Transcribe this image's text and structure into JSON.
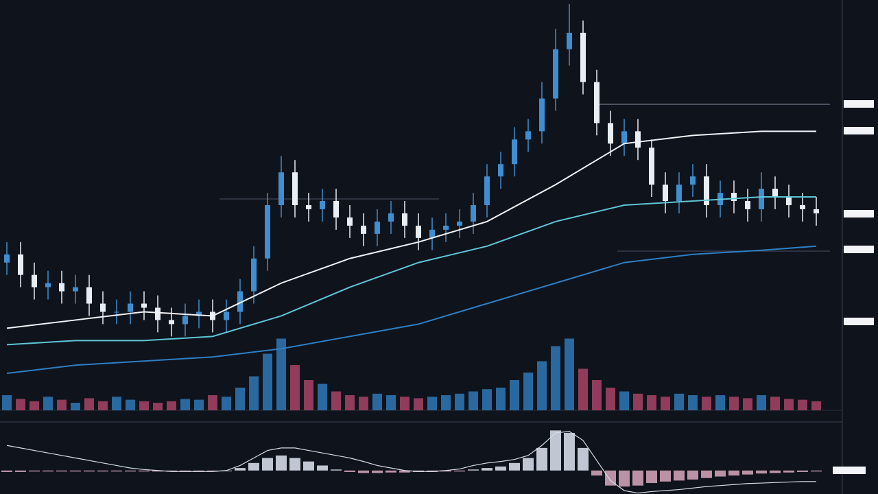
{
  "chart_data": [
    {
      "type": "candlestick",
      "ylim": [
        0,
        100
      ],
      "up_color": "#3f8fd0",
      "down_color": "#e8eef5",
      "open": [
        36,
        38,
        33,
        30,
        31,
        29,
        30,
        26,
        24,
        24,
        26,
        25,
        22,
        21,
        23,
        24,
        22,
        24,
        29,
        37,
        50,
        58,
        50,
        49,
        51,
        47,
        45,
        43,
        46,
        48,
        45,
        42,
        44,
        45,
        46,
        50,
        57,
        60,
        66,
        68,
        76,
        88,
        92,
        80,
        70,
        65,
        68,
        64,
        55,
        51,
        55,
        57,
        50,
        53,
        51,
        49,
        54,
        52,
        50,
        49
      ],
      "high": [
        41,
        41,
        36,
        34,
        34,
        33,
        33,
        29,
        27,
        29,
        29,
        28,
        25,
        26,
        27,
        27,
        27,
        32,
        40,
        53,
        62,
        61,
        53,
        54,
        54,
        50,
        48,
        49,
        51,
        51,
        48,
        47,
        48,
        49,
        53,
        60,
        63,
        69,
        71,
        80,
        93,
        99,
        95,
        83,
        73,
        71,
        71,
        66,
        58,
        58,
        60,
        60,
        56,
        56,
        54,
        58,
        57,
        55,
        53,
        52
      ],
      "low": [
        33,
        30,
        27,
        27,
        26,
        26,
        23,
        21,
        21,
        21,
        22,
        19,
        18,
        18,
        20,
        19,
        19,
        21,
        26,
        34,
        47,
        47,
        46,
        46,
        44,
        42,
        40,
        40,
        43,
        42,
        39,
        39,
        41,
        42,
        43,
        47,
        54,
        57,
        63,
        65,
        73,
        84,
        77,
        67,
        62,
        62,
        61,
        52,
        48,
        48,
        52,
        47,
        47,
        48,
        46,
        46,
        49,
        47,
        46,
        45
      ],
      "close": [
        38,
        33,
        30,
        31,
        29,
        30,
        26,
        24,
        24,
        26,
        25,
        22,
        21,
        23,
        24,
        22,
        24,
        29,
        37,
        50,
        58,
        50,
        49,
        51,
        47,
        45,
        43,
        46,
        48,
        45,
        42,
        44,
        45,
        46,
        50,
        57,
        60,
        66,
        68,
        76,
        88,
        92,
        80,
        70,
        65,
        68,
        64,
        55,
        51,
        55,
        57,
        50,
        53,
        51,
        49,
        54,
        52,
        50,
        49,
        48
      ],
      "overlays": {
        "x": [
          0,
          5,
          10,
          15,
          20,
          25,
          30,
          35,
          40,
          45,
          50,
          55,
          59
        ],
        "series": [
          {
            "color": "#f2f4f8",
            "values": [
              20,
              22,
              24,
              23,
              31,
              37,
              41,
              46,
              55,
              65,
              67,
              68,
              68
            ]
          },
          {
            "color": "#5fc6d8",
            "values": [
              16,
              17,
              17,
              18,
              23,
              30,
              36,
              40,
              46,
              50,
              51,
              52,
              52
            ]
          },
          {
            "color": "#2e7fc4",
            "values": [
              9,
              11,
              12,
              13,
              15,
              18,
              21,
              26,
              31,
              36,
              38,
              39,
              40
            ]
          }
        ]
      }
    },
    {
      "type": "bar",
      "ylim": [
        0,
        100
      ],
      "up_color": "#2f7fc0",
      "down_color": "#b0476a",
      "values": [
        20,
        15,
        12,
        18,
        14,
        10,
        16,
        12,
        18,
        14,
        12,
        10,
        12,
        15,
        14,
        20,
        18,
        30,
        45,
        75,
        95,
        60,
        40,
        35,
        25,
        20,
        18,
        22,
        20,
        18,
        16,
        18,
        20,
        22,
        25,
        28,
        30,
        40,
        50,
        65,
        85,
        95,
        55,
        40,
        30,
        25,
        22,
        20,
        18,
        22,
        20,
        18,
        20,
        18,
        16,
        20,
        18,
        15,
        14,
        12
      ]
    },
    {
      "type": "histogram-line",
      "ylim": [
        -40,
        90
      ],
      "pos_color": "#dfe6f2",
      "neg_color": "#d9a9bd",
      "line_color": "#d8dde6",
      "values": [
        -3,
        -3,
        -2,
        -2,
        -2,
        -2,
        -2,
        -2,
        -2,
        -2,
        -2,
        -2,
        -2,
        -2,
        -2,
        -1,
        0,
        5,
        15,
        25,
        30,
        25,
        18,
        10,
        2,
        -3,
        -5,
        -5,
        -4,
        -4,
        -3,
        -3,
        -2,
        -2,
        2,
        5,
        8,
        15,
        25,
        45,
        80,
        75,
        45,
        -10,
        -30,
        -32,
        -30,
        -25,
        -22,
        -20,
        -18,
        -15,
        -12,
        -10,
        -8,
        -6,
        -5,
        -4,
        -3,
        -2
      ],
      "signal": [
        50,
        45,
        40,
        35,
        30,
        25,
        20,
        15,
        10,
        5,
        2,
        0,
        -2,
        -2,
        -2,
        -2,
        0,
        10,
        25,
        40,
        45,
        45,
        40,
        35,
        30,
        25,
        18,
        10,
        5,
        0,
        -2,
        -2,
        0,
        3,
        10,
        15,
        18,
        22,
        30,
        50,
        75,
        78,
        60,
        20,
        -20,
        -40,
        -45,
        -42,
        -40,
        -38,
        -35,
        -32,
        -30,
        -28,
        -26,
        -25,
        -24,
        -23,
        -22,
        -22
      ]
    }
  ]
}
